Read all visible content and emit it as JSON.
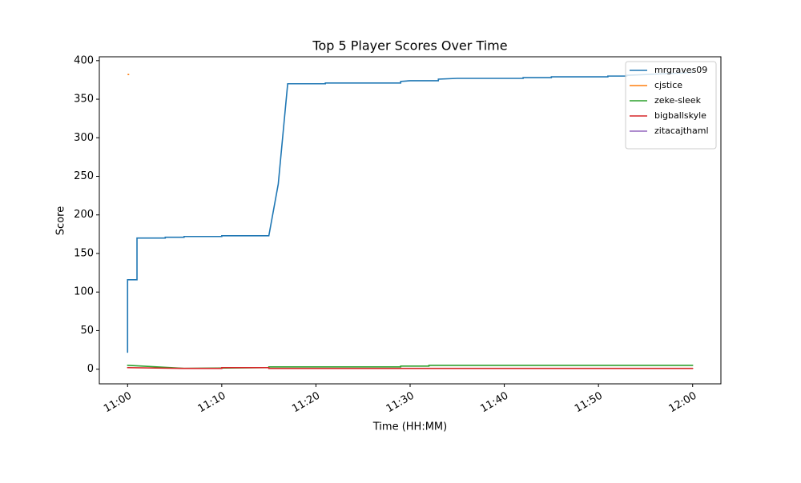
{
  "chart_data": {
    "type": "line",
    "title": "Top 5 Player Scores Over Time",
    "x_label": "Time (HH:MM)",
    "y_label": "Score",
    "xlim": [
      "10:57",
      "12:03"
    ],
    "xticks": [
      "11:00",
      "11:10",
      "11:20",
      "11:30",
      "11:40",
      "11:50",
      "12:00"
    ],
    "ylim": [
      -19,
      405
    ],
    "yticks": [
      0,
      50,
      100,
      150,
      200,
      250,
      300,
      350,
      400
    ],
    "grid": false,
    "legend": "upper right",
    "series": [
      {
        "name": "mrgraves09",
        "color": "#1f77b4",
        "x": [
          "11:00",
          "11:00",
          "11:01",
          "11:01",
          "11:04",
          "11:04",
          "11:06",
          "11:06",
          "11:10",
          "11:10",
          "11:15",
          "11:16",
          "11:17",
          "11:21",
          "11:21",
          "11:29",
          "11:29",
          "11:30",
          "11:33",
          "11:33",
          "11:35",
          "11:42",
          "11:42",
          "11:45",
          "11:45",
          "11:51",
          "11:51",
          "11:53",
          "11:53",
          "11:55",
          "11:57",
          "11:59",
          "12:00"
        ],
        "values": [
          22,
          116,
          116,
          170,
          170,
          171,
          171,
          172,
          172,
          173,
          173,
          240,
          370,
          370,
          371,
          371,
          373,
          374,
          374,
          376,
          377,
          377,
          378,
          378,
          379,
          379,
          380,
          380,
          381,
          382,
          383,
          384,
          385
        ]
      },
      {
        "name": "cjstice",
        "color": "#ff7f0e",
        "x": [
          "11:00"
        ],
        "values": [
          382
        ]
      },
      {
        "name": "zeke-sleek",
        "color": "#2ca02c",
        "x": [
          "11:00",
          "11:06",
          "11:15",
          "11:15",
          "11:29",
          "11:29",
          "11:32",
          "11:32",
          "12:00"
        ],
        "values": [
          5,
          1,
          2,
          3,
          3,
          4,
          4,
          5,
          5
        ]
      },
      {
        "name": "bigballskyle",
        "color": "#d62728",
        "x": [
          "11:00",
          "11:06",
          "11:10",
          "11:10",
          "11:15",
          "11:15",
          "12:00"
        ],
        "values": [
          2,
          1,
          1,
          2,
          2,
          1,
          1
        ]
      },
      {
        "name": "zitacajthaml",
        "color": "#9467bd",
        "x": [],
        "values": []
      }
    ]
  }
}
